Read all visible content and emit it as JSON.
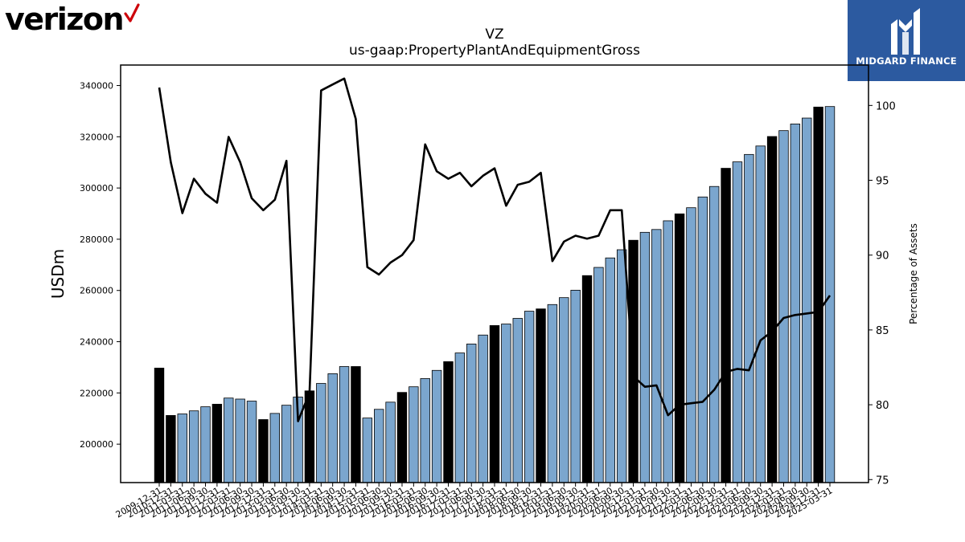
{
  "brand": {
    "logo_text": "verizon",
    "logo_mark": "red-check-icon",
    "logo_color": "#cd040b"
  },
  "badge": {
    "label": "MIDGARD FINANCE",
    "logo_icon": "midgard-logo-icon",
    "background": "#2c5aa0"
  },
  "chart_data": {
    "type": "bar+line",
    "title": "VZ",
    "subtitle": "us-gaap:PropertyPlantAndEquipmentGross",
    "ylabel": "USDm",
    "ylabel_right": "Percentage of Assets",
    "ylim": [
      185000,
      348000
    ],
    "ylim_right": [
      74.8,
      102.7
    ],
    "yticks": [
      200000,
      220000,
      240000,
      260000,
      280000,
      300000,
      320000,
      340000
    ],
    "yticks_right": [
      75,
      80,
      85,
      90,
      95,
      100
    ],
    "colors": {
      "annual_bar": "#000000",
      "quarter_bar": "#7ba6ce",
      "line": "#000000"
    },
    "categories": [
      "2009-12-31",
      "2010-12-31",
      "2011-03-31",
      "2011-06-30",
      "2011-09-30",
      "2011-12-31",
      "2012-03-31",
      "2012-06-30",
      "2012-09-30",
      "2012-12-31",
      "2013-03-31",
      "2013-06-30",
      "2013-09-30",
      "2013-12-31",
      "2014-03-31",
      "2014-06-30",
      "2014-09-30",
      "2014-12-31",
      "2015-03-31",
      "2015-06-30",
      "2015-09-30",
      "2015-12-31",
      "2016-03-31",
      "2016-06-30",
      "2016-09-30",
      "2016-12-31",
      "2017-03-31",
      "2017-06-30",
      "2017-09-30",
      "2017-12-31",
      "2018-03-31",
      "2018-06-30",
      "2018-09-30",
      "2018-12-31",
      "2019-03-31",
      "2019-06-30",
      "2019-09-30",
      "2019-12-31",
      "2020-03-31",
      "2020-06-30",
      "2020-09-30",
      "2020-12-31",
      "2021-03-31",
      "2021-06-30",
      "2021-09-30",
      "2021-12-31",
      "2022-03-31",
      "2022-06-30",
      "2022-09-30",
      "2022-12-31",
      "2023-03-31",
      "2023-06-30",
      "2023-09-30",
      "2023-12-31",
      "2024-03-31",
      "2024-06-30",
      "2024-09-30",
      "2024-12-31",
      "2025-03-31"
    ],
    "annual": [
      true,
      true,
      false,
      false,
      false,
      true,
      false,
      false,
      false,
      true,
      false,
      false,
      false,
      true,
      false,
      false,
      false,
      true,
      false,
      false,
      false,
      true,
      false,
      false,
      false,
      true,
      false,
      false,
      false,
      true,
      false,
      false,
      false,
      true,
      false,
      false,
      false,
      true,
      false,
      false,
      false,
      true,
      false,
      false,
      false,
      true,
      false,
      false,
      false,
      true,
      false,
      false,
      false,
      true,
      false,
      false,
      false,
      true,
      false
    ],
    "series": [
      {
        "name": "PropertyPlantAndEquipmentGross",
        "kind": "bar",
        "axis": "left",
        "values": [
          229700,
          211200,
          211800,
          213000,
          214600,
          215600,
          218000,
          217600,
          216800,
          209600,
          212000,
          215200,
          218400,
          220800,
          223700,
          227500,
          230300,
          230300,
          210200,
          213600,
          216400,
          220200,
          222400,
          225600,
          228800,
          232200,
          235600,
          239100,
          242600,
          246300,
          246900,
          249100,
          251900,
          252800,
          254500,
          257200,
          260100,
          265800,
          269000,
          272700,
          275900,
          279600,
          282700,
          283800,
          287200,
          289900,
          292300,
          296500,
          300600,
          307700,
          310200,
          313100,
          316400,
          320100,
          322400,
          325000,
          327300,
          331600,
          331800
        ]
      },
      {
        "name": "Percentage of Assets",
        "kind": "line",
        "axis": "right",
        "values": [
          101.2,
          96.2,
          92.8,
          95.1,
          94.1,
          93.5,
          97.9,
          96.2,
          93.8,
          93.0,
          93.7,
          96.3,
          78.9,
          80.8,
          101.0,
          101.4,
          101.8,
          99.1,
          89.2,
          88.7,
          89.5,
          90.0,
          91.0,
          97.4,
          95.6,
          95.1,
          95.5,
          94.6,
          95.3,
          95.8,
          93.3,
          94.7,
          94.9,
          95.5,
          89.6,
          90.9,
          91.3,
          91.1,
          91.3,
          93.0,
          93.0,
          81.9,
          81.2,
          81.3,
          79.3,
          80.0,
          80.1,
          80.2,
          81.0,
          82.2,
          82.4,
          82.3,
          84.3,
          84.9,
          85.8,
          86.0,
          86.1,
          86.2,
          87.3
        ]
      }
    ]
  }
}
